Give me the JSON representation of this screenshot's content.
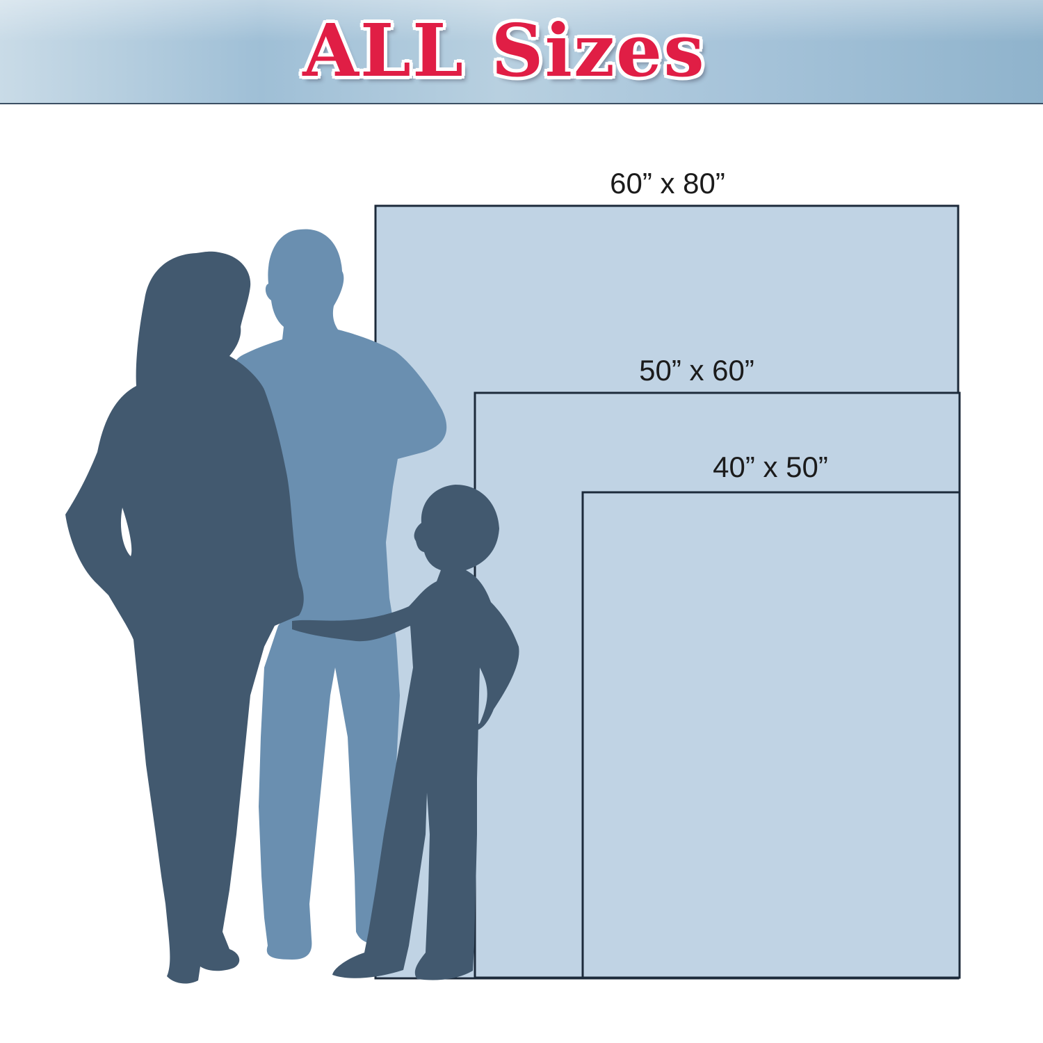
{
  "banner": {
    "title": "ALL Sizes",
    "title_color": "#e01e45"
  },
  "sizes": [
    {
      "label": "60” x 80”",
      "width_in": 60,
      "height_in": 80
    },
    {
      "label": "50” x 60”",
      "width_in": 50,
      "height_in": 60
    },
    {
      "label": "40” x 50”",
      "width_in": 40,
      "height_in": 50
    }
  ],
  "colors": {
    "blanket_fill": "#c0d3e4",
    "blanket_border": "#1c2a3a",
    "adult_dark": "#42596f",
    "adult_light": "#6a8fb0",
    "child": "#42596f"
  },
  "figures": [
    "woman-silhouette",
    "man-silhouette",
    "child-silhouette"
  ]
}
